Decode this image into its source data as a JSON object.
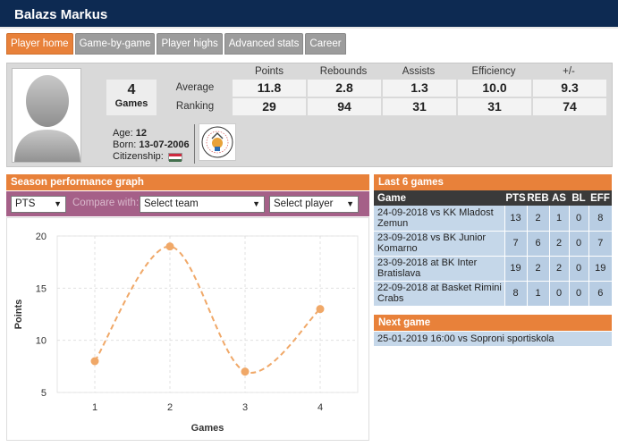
{
  "header": {
    "player_name": "Balazs Markus"
  },
  "tabs": [
    {
      "label": "Player home",
      "active": true
    },
    {
      "label": "Game-by-game",
      "active": false
    },
    {
      "label": "Player highs",
      "active": false
    },
    {
      "label": "Advanced stats",
      "active": false
    },
    {
      "label": "Career",
      "active": false
    }
  ],
  "profile": {
    "games_count": "4",
    "games_label": "Games",
    "columns": [
      "Points",
      "Rebounds",
      "Assists",
      "Efficiency",
      "+/-"
    ],
    "average_label": "Average",
    "ranking_label": "Ranking",
    "average": [
      "11.8",
      "2.8",
      "1.3",
      "10.0",
      "9.3"
    ],
    "ranking": [
      "29",
      "94",
      "31",
      "31",
      "74"
    ],
    "age_label": "Age:",
    "age": "12",
    "born_label": "Born:",
    "born": "13-07-2006",
    "citizenship_label": "Citizenship:",
    "flag_colors": [
      "#cd2a3e",
      "#ffffff",
      "#436f4d"
    ]
  },
  "season_panel": {
    "title": "Season performance graph",
    "stat_select": "PTS",
    "compare_label": "Compare with:",
    "team_select": "Select team",
    "player_select": "Select player"
  },
  "chart_data": {
    "type": "line",
    "x": [
      1,
      2,
      3,
      4
    ],
    "values": [
      8,
      19,
      7,
      13
    ],
    "xlabel": "Games",
    "ylabel": "Points",
    "xlim": [
      0.5,
      4.5
    ],
    "ylim": [
      5,
      20
    ],
    "yticks": [
      5,
      10,
      15,
      20
    ],
    "xticks": [
      1,
      2,
      3,
      4
    ],
    "grid": true,
    "line_style": "dashed-smooth",
    "color": "#f0a868"
  },
  "last_games": {
    "title": "Last 6 games",
    "headers": [
      "Game",
      "PTS",
      "REB",
      "AS",
      "BL",
      "EFF"
    ],
    "rows": [
      {
        "date": "24-09-2018",
        "venue": "vs",
        "opponent": "KK Mladost Zemun",
        "stats": [
          "13",
          "2",
          "1",
          "0",
          "8"
        ]
      },
      {
        "date": "23-09-2018",
        "venue": "vs",
        "opponent": "BK Junior Komarno",
        "stats": [
          "7",
          "6",
          "2",
          "0",
          "7"
        ]
      },
      {
        "date": "23-09-2018",
        "venue": "at",
        "opponent": "BK Inter Bratislava",
        "stats": [
          "19",
          "2",
          "2",
          "0",
          "19"
        ]
      },
      {
        "date": "22-09-2018",
        "venue": "at",
        "opponent": "Basket Rimini Crabs",
        "stats": [
          "8",
          "1",
          "0",
          "0",
          "6"
        ]
      }
    ]
  },
  "next_game": {
    "title": "Next game",
    "datetime": "25-01-2019 16:00",
    "venue": "vs",
    "opponent": "Soproni sportiskola"
  }
}
